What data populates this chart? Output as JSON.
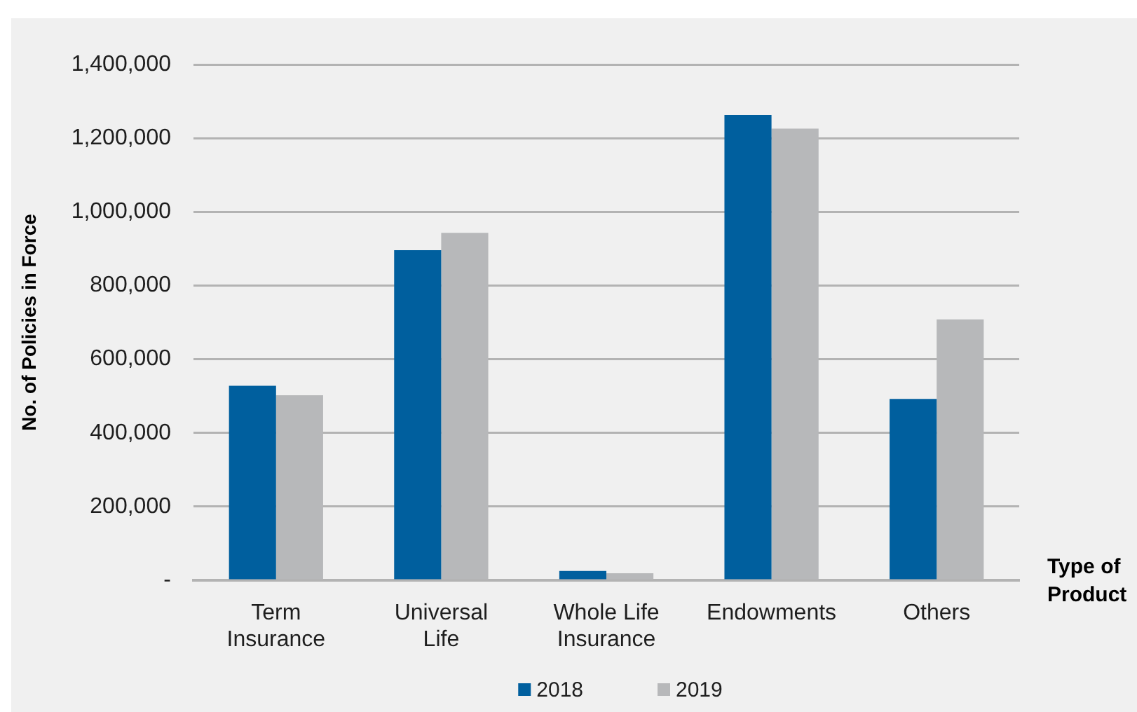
{
  "chart_data": {
    "type": "bar",
    "ylabel": "No. of Policies in Force",
    "xlabel": "Type of Product",
    "categories": [
      "Term Insurance",
      "Universal Life",
      "Whole Life Insurance",
      "Endowments",
      "Others"
    ],
    "series": [
      {
        "name": "2018",
        "color": "#005f9e",
        "values": [
          528000,
          896000,
          25000,
          1263000,
          492000
        ]
      },
      {
        "name": "2019",
        "color": "#b7b8ba",
        "values": [
          502000,
          943000,
          19000,
          1226000,
          708000
        ]
      }
    ],
    "ylim": [
      0,
      1400000
    ],
    "yticks": [
      {
        "value": 0,
        "label": "-"
      },
      {
        "value": 200000,
        "label": "200,000"
      },
      {
        "value": 400000,
        "label": "400,000"
      },
      {
        "value": 600000,
        "label": "600,000"
      },
      {
        "value": 800000,
        "label": "800,000"
      },
      {
        "value": 1000000,
        "label": "1,000,000"
      },
      {
        "value": 1200000,
        "label": "1,200,000"
      },
      {
        "value": 1400000,
        "label": "1,400,000"
      }
    ],
    "grid": "y",
    "legend": "bottom"
  }
}
